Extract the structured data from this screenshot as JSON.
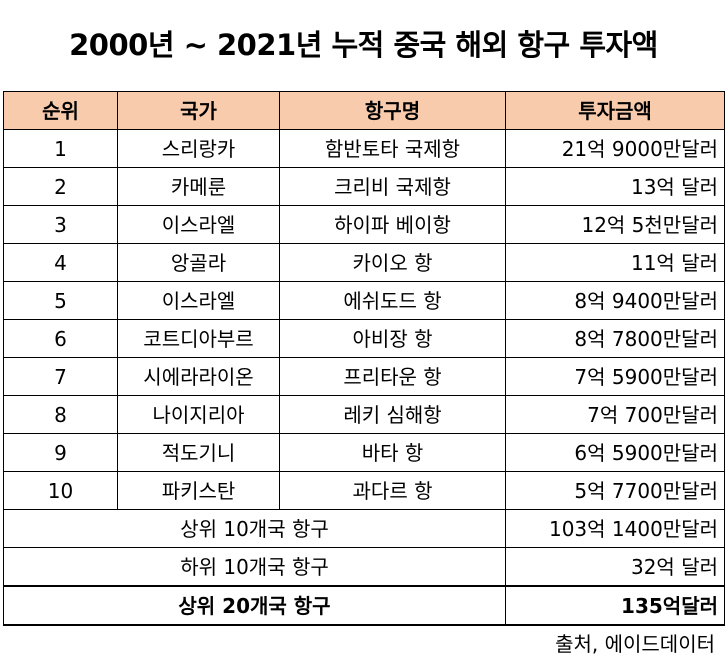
{
  "title": "2000년 ~ 2021년 누적 중국 해외 항구 투자액",
  "table": {
    "headers": [
      "순위",
      "국가",
      "항구명",
      "투자금액"
    ],
    "rows": [
      {
        "rank": "1",
        "country": "스리랑카",
        "port": "함반토타 국제항",
        "amount": "21억 9000만달러"
      },
      {
        "rank": "2",
        "country": "카메룬",
        "port": "크리비 국제항",
        "amount": "13억 달러"
      },
      {
        "rank": "3",
        "country": "이스라엘",
        "port": "하이파 베이항",
        "amount": "12억 5천만달러"
      },
      {
        "rank": "4",
        "country": "앙골라",
        "port": "카이오 항",
        "amount": "11억 달러"
      },
      {
        "rank": "5",
        "country": "이스라엘",
        "port": "에쉬도드 항",
        "amount": "8억 9400만달러"
      },
      {
        "rank": "6",
        "country": "코트디아부르",
        "port": "아비장 항",
        "amount": "8억 7800만달러"
      },
      {
        "rank": "7",
        "country": "시에라라이온",
        "port": "프리타운 항",
        "amount": "7억 5900만달러"
      },
      {
        "rank": "8",
        "country": "나이지리아",
        "port": "레키 심해항",
        "amount": "7억 700만달러"
      },
      {
        "rank": "9",
        "country": "적도기니",
        "port": "바타 항",
        "amount": "6억 5900만달러"
      },
      {
        "rank": "10",
        "country": "파키스탄",
        "port": "과다르 항",
        "amount": "5억 7700만달러"
      }
    ],
    "summary": [
      {
        "label": "상위 10개국 항구",
        "amount": "103억 1400만달러"
      },
      {
        "label": "하위 10개국 항구",
        "amount": "32억 달러"
      }
    ],
    "total": {
      "label": "상위 20개국 항구",
      "amount": "135억달러"
    }
  },
  "source": "출처, 에이드데이터"
}
